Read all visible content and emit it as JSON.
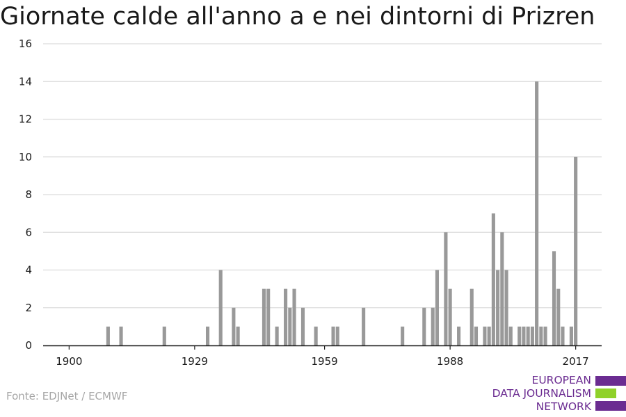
{
  "title": "Giornate calde all'anno a e nei dintorni di Prizren",
  "source": "Fonte: EDJNet / ECMWF",
  "logo": {
    "lines": [
      "EUROPEAN",
      "DATA JOURNALISM",
      "NETWORK"
    ],
    "colors": {
      "purple": "#6b2c91",
      "green": "#8fd12a"
    }
  },
  "chart_data": {
    "type": "bar",
    "title": "Giornate calde all'anno a e nei dintorni di Prizren",
    "xlabel": "",
    "ylabel": "",
    "xlim": [
      1894,
      2023
    ],
    "ylim": [
      0,
      16
    ],
    "x_ticks": [
      1900,
      1929,
      1959,
      1988,
      2017
    ],
    "y_ticks": [
      0,
      2,
      4,
      6,
      8,
      10,
      12,
      14,
      16
    ],
    "grid": true,
    "bar_color": "#999999",
    "x": [
      1909,
      1912,
      1922,
      1932,
      1935,
      1938,
      1939,
      1945,
      1946,
      1948,
      1950,
      1951,
      1952,
      1954,
      1957,
      1961,
      1962,
      1968,
      1977,
      1982,
      1984,
      1985,
      1987,
      1988,
      1990,
      1993,
      1994,
      1996,
      1997,
      1998,
      1999,
      2000,
      2001,
      2002,
      2004,
      2005,
      2006,
      2007,
      2008,
      2009,
      2010,
      2012,
      2013,
      2014,
      2016,
      2017
    ],
    "values": [
      1,
      1,
      1,
      1,
      4,
      2,
      1,
      3,
      3,
      1,
      3,
      2,
      3,
      2,
      1,
      1,
      1,
      2,
      1,
      2,
      2,
      4,
      6,
      3,
      1,
      3,
      1,
      1,
      1,
      7,
      4,
      6,
      4,
      1,
      1,
      1,
      1,
      1,
      14,
      1,
      1,
      5,
      3,
      1,
      1,
      10
    ]
  }
}
